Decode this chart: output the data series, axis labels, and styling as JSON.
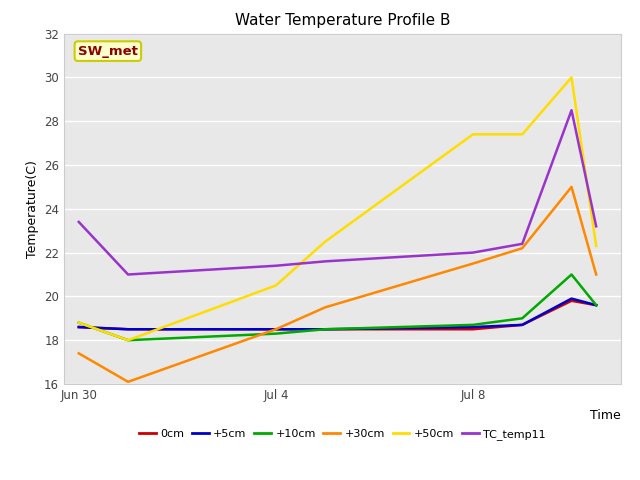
{
  "title": "Water Temperature Profile B",
  "xlabel": "Time",
  "ylabel": "Temperature(C)",
  "ylim": [
    16,
    32
  ],
  "yticks": [
    16,
    18,
    20,
    22,
    24,
    26,
    28,
    30,
    32
  ],
  "plot_bg": "#e8e8e8",
  "fig_bg": "#ffffff",
  "annotation_text": "SW_met",
  "annotation_color": "#8b0000",
  "annotation_bg": "#ffffcc",
  "annotation_edge": "#cccc00",
  "series": {
    "0cm": {
      "color": "#cc0000",
      "x": [
        0,
        1,
        4,
        5,
        8,
        9,
        10,
        10.5
      ],
      "y": [
        18.6,
        18.5,
        18.5,
        18.5,
        18.5,
        18.7,
        19.8,
        19.6
      ]
    },
    "+5cm": {
      "color": "#0000cc",
      "x": [
        0,
        1,
        4,
        5,
        8,
        9,
        10,
        10.5
      ],
      "y": [
        18.6,
        18.5,
        18.5,
        18.5,
        18.6,
        18.7,
        19.9,
        19.6
      ]
    },
    "+10cm": {
      "color": "#00aa00",
      "x": [
        0,
        1,
        4,
        5,
        8,
        9,
        10,
        10.5
      ],
      "y": [
        18.8,
        18.0,
        18.3,
        18.5,
        18.7,
        19.0,
        21.0,
        19.6
      ]
    },
    "+30cm": {
      "color": "#ff8800",
      "x": [
        0,
        1,
        4,
        5,
        8,
        9,
        10,
        10.5
      ],
      "y": [
        17.4,
        16.1,
        18.5,
        19.5,
        21.5,
        22.2,
        25.0,
        21.0
      ]
    },
    "+50cm": {
      "color": "#ffdd00",
      "x": [
        0,
        1,
        4,
        5,
        8,
        9,
        10,
        10.5
      ],
      "y": [
        18.8,
        18.0,
        20.5,
        22.5,
        27.4,
        27.4,
        30.0,
        22.3
      ]
    },
    "TC_temp11": {
      "color": "#9933cc",
      "x": [
        0,
        1,
        4,
        5,
        8,
        9,
        10,
        10.5
      ],
      "y": [
        23.4,
        21.0,
        21.4,
        21.6,
        22.0,
        22.4,
        28.5,
        23.2
      ]
    }
  },
  "xtick_positions": [
    0,
    4,
    8
  ],
  "xtick_labels": [
    "Jun 30",
    "Jul 4",
    "Jul 8"
  ],
  "xlim": [
    -0.3,
    11.0
  ],
  "legend_order": [
    "0cm",
    "+5cm",
    "+10cm",
    "+30cm",
    "+50cm",
    "TC_temp11"
  ],
  "title_fontsize": 11,
  "label_fontsize": 9,
  "tick_fontsize": 8.5,
  "legend_fontsize": 8
}
